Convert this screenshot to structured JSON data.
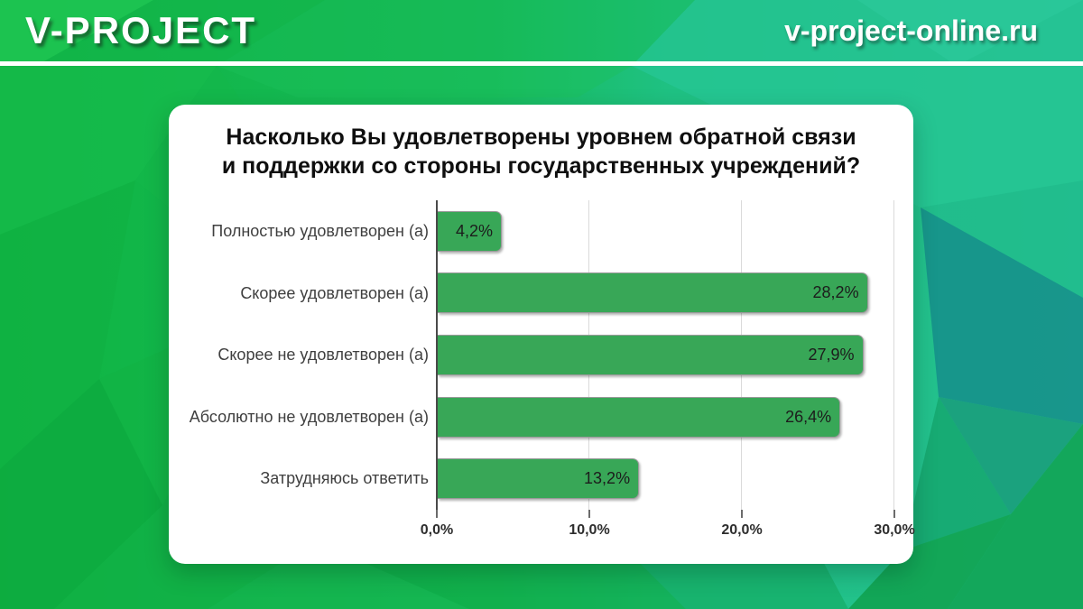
{
  "header": {
    "brand": "V-PROJECT",
    "site": "v-project-online.ru"
  },
  "colors": {
    "bar": "#38a757",
    "bar_border": "#9a9a9a",
    "axis_line": "#4a4a4a",
    "gridline": "#dadada",
    "title_text": "#0f0f0f",
    "category_text": "#3f3f3f",
    "value_text": "#1c1c1c",
    "tick_text": "#2d2d2d",
    "background_green": "#12b446",
    "background_teal": "#23c190",
    "card_background": "#ffffff",
    "header_text": "#ffffff"
  },
  "chart_data": {
    "type": "bar",
    "orientation": "horizontal",
    "title": "Насколько Вы удовлетворены уровнем обратной связи и поддержки со стороны государственных учреждений?",
    "title_lines": [
      "Насколько Вы удовлетворены уровнем обратной связи",
      "и поддержки со стороны государственных учреждений?"
    ],
    "categories": [
      "Полностью удовлетворен (а)",
      "Скорее удовлетворен (а)",
      "Скорее не удовлетворен (а)",
      "Абсолютно не удовлетворен (а)",
      "Затрудняюсь ответить"
    ],
    "values": [
      4.2,
      28.2,
      27.9,
      26.4,
      13.2
    ],
    "value_labels": [
      "4,2%",
      "28,2%",
      "27,9%",
      "26,4%",
      "13,2%"
    ],
    "x_ticks": [
      {
        "label": "0,0%",
        "value": 0
      },
      {
        "label": "10,0%",
        "value": 10
      },
      {
        "label": "20,0%",
        "value": 20
      },
      {
        "label": "30,0%",
        "value": 30
      }
    ],
    "xlim": [
      0,
      31.3
    ],
    "xlabel": "",
    "ylabel": "",
    "grid": true,
    "legend": false,
    "bar_color": "#38a757"
  }
}
